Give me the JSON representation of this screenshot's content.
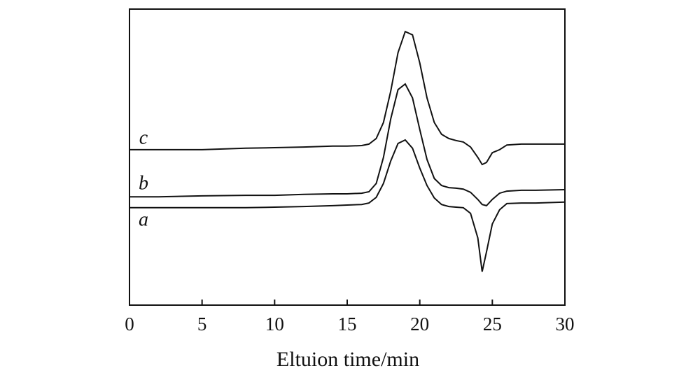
{
  "chart_data": {
    "type": "line",
    "x_label": "Eltuion time/min",
    "x": [
      0,
      2,
      5,
      8,
      10,
      12,
      14,
      15,
      16,
      16.5,
      17,
      17.5,
      18,
      18.5,
      19,
      19.5,
      20,
      20.5,
      21,
      21.5,
      22,
      22.5,
      23,
      23.5,
      24,
      24.3,
      24.6,
      25,
      25.5,
      26,
      27,
      28,
      30
    ],
    "series": [
      {
        "name": "c",
        "color": "#111111",
        "values": [
          52.5,
          52.5,
          52.5,
          53.0,
          53.2,
          53.4,
          53.7,
          53.7,
          53.9,
          54.4,
          56.3,
          61.7,
          72.3,
          85.3,
          92.4,
          91.3,
          81.8,
          70.0,
          61.7,
          57.7,
          56.3,
          55.6,
          55.1,
          53.4,
          49.9,
          47.5,
          48.2,
          51.5,
          52.5,
          54.1,
          54.4,
          54.4,
          54.4
        ]
      },
      {
        "name": "b",
        "color": "#111111",
        "values": [
          36.6,
          36.6,
          36.9,
          37.1,
          37.1,
          37.4,
          37.6,
          37.6,
          37.8,
          38.3,
          41.1,
          49.9,
          62.9,
          72.8,
          74.7,
          70.0,
          59.3,
          49.2,
          42.8,
          40.4,
          39.7,
          39.5,
          39.2,
          38.1,
          35.7,
          34.0,
          33.6,
          35.7,
          37.8,
          38.5,
          38.8,
          38.8,
          39.0
        ]
      },
      {
        "name": "a",
        "color": "#111111",
        "values": [
          32.9,
          32.9,
          32.9,
          32.9,
          33.1,
          33.3,
          33.6,
          33.8,
          34.0,
          34.5,
          36.4,
          41.1,
          48.7,
          54.6,
          55.8,
          53.0,
          46.3,
          40.4,
          36.2,
          34.0,
          33.3,
          33.1,
          32.9,
          31.0,
          22.7,
          11.3,
          18.0,
          27.4,
          32.2,
          34.3,
          34.5,
          34.5,
          34.8
        ]
      }
    ],
    "xlim": [
      0,
      30
    ],
    "xticks": [
      0,
      5,
      10,
      15,
      20,
      25,
      30
    ],
    "ylim": [
      0,
      100
    ],
    "grid": false
  }
}
